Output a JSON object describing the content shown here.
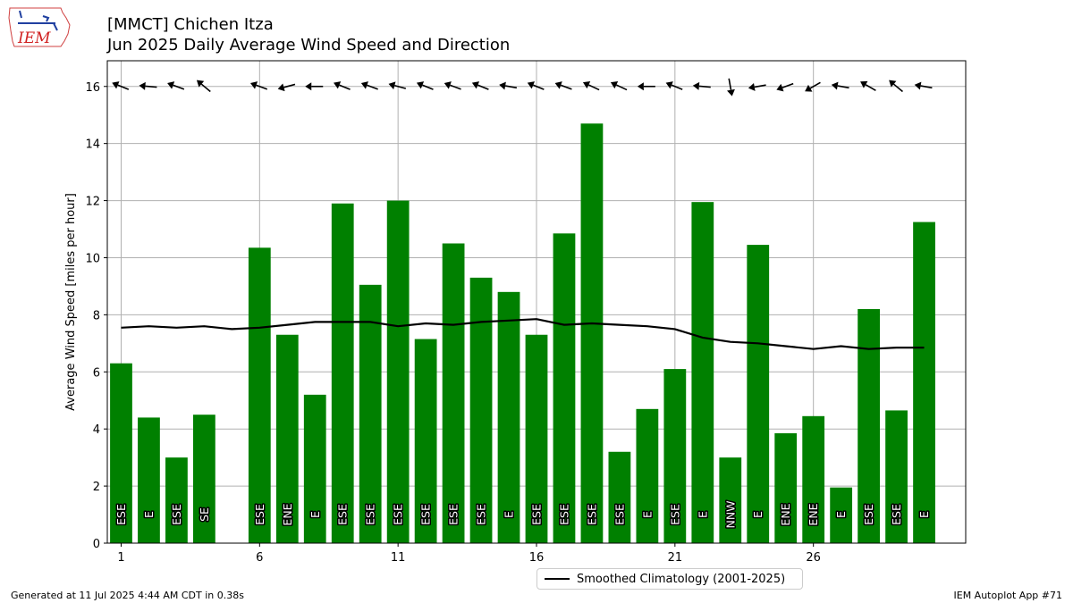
{
  "header": {
    "title_line1": "[MMCT] Chichen Itza",
    "title_line2": "Jun 2025 Daily Average Wind Speed and Direction"
  },
  "logo": {
    "text": "IEM",
    "icon": "iem-iowa-logo-icon"
  },
  "footer": {
    "generated": "Generated at 11 Jul 2025 4:44 AM CDT in 0.38s",
    "app": "IEM Autoplot App #71"
  },
  "chart_data": {
    "type": "bar",
    "ylabel": "Average Wind Speed [miles per hour]",
    "xlabel": "",
    "ylim": [
      0,
      16.9
    ],
    "xlim": [
      0.5,
      31.5
    ],
    "yticks": [
      0,
      2,
      4,
      6,
      8,
      10,
      12,
      14,
      16
    ],
    "xticks": [
      1,
      6,
      11,
      16,
      21,
      26
    ],
    "grid": true,
    "bar_color": "#008000",
    "days": [
      1,
      2,
      3,
      4,
      6,
      7,
      8,
      9,
      10,
      11,
      12,
      13,
      14,
      15,
      16,
      17,
      18,
      19,
      20,
      21,
      22,
      23,
      24,
      25,
      26,
      27,
      28,
      29,
      30
    ],
    "speeds": [
      6.3,
      4.4,
      3.0,
      4.5,
      10.35,
      7.3,
      5.2,
      11.9,
      9.05,
      12.0,
      7.15,
      10.5,
      9.3,
      8.8,
      7.3,
      10.85,
      14.7,
      3.2,
      4.7,
      6.1,
      11.95,
      3.0,
      10.45,
      3.85,
      4.45,
      1.95,
      8.2,
      4.65,
      11.25
    ],
    "directions": [
      "ESE",
      "E",
      "ESE",
      "SE",
      "ESE",
      "ENE",
      "E",
      "ESE",
      "ESE",
      "ESE",
      "ESE",
      "ESE",
      "ESE",
      "E",
      "ESE",
      "ESE",
      "ESE",
      "ESE",
      "E",
      "ESE",
      "E",
      "NNW",
      "E",
      "ENE",
      "ENE",
      "E",
      "ESE",
      "ESE",
      "E"
    ],
    "arrow_bearings": [
      112,
      95,
      110,
      130,
      110,
      75,
      90,
      112,
      110,
      105,
      112,
      110,
      112,
      100,
      112,
      110,
      115,
      115,
      90,
      112,
      95,
      350,
      80,
      70,
      60,
      100,
      120,
      130,
      100
    ],
    "series": [
      {
        "name": "Smoothed Climatology (2001-2025)",
        "type": "line",
        "color": "#000000",
        "x": [
          1,
          2,
          3,
          4,
          5,
          6,
          7,
          8,
          9,
          10,
          11,
          12,
          13,
          14,
          15,
          16,
          17,
          18,
          19,
          20,
          21,
          22,
          23,
          24,
          25,
          26,
          27,
          28,
          29,
          30
        ],
        "values": [
          7.55,
          7.6,
          7.55,
          7.6,
          7.5,
          7.55,
          7.65,
          7.75,
          7.75,
          7.75,
          7.6,
          7.7,
          7.65,
          7.75,
          7.8,
          7.85,
          7.65,
          7.7,
          7.65,
          7.6,
          7.5,
          7.2,
          7.05,
          7.0,
          6.9,
          6.8,
          6.9,
          6.8,
          6.85,
          6.85
        ]
      }
    ],
    "legend_position": "below-center"
  }
}
